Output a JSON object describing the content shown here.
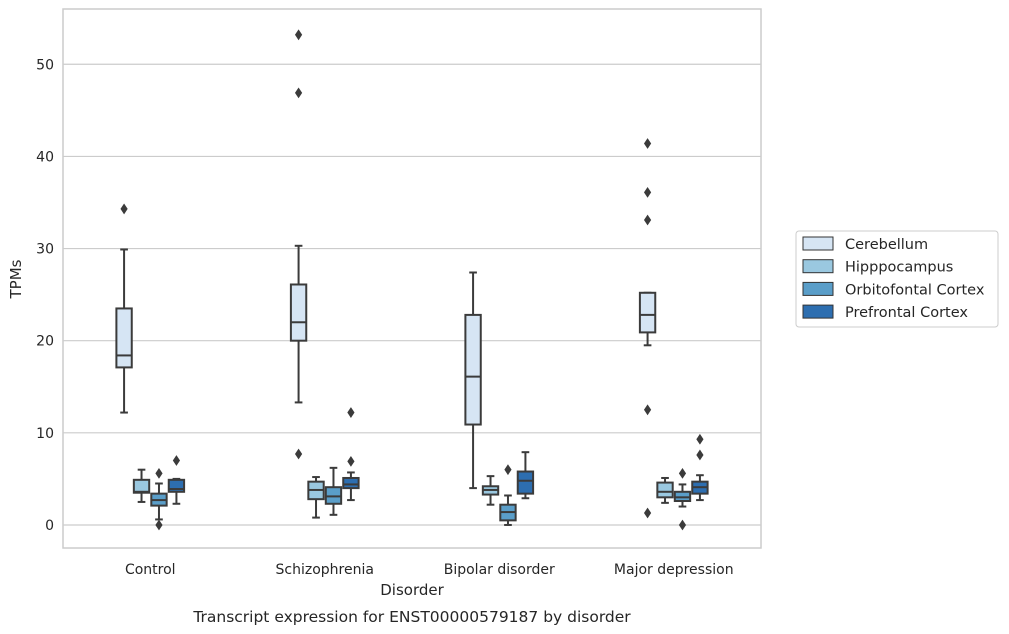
{
  "chart_data": {
    "type": "box",
    "caption": "Transcript expression for ENST00000579187 by disorder",
    "xlabel": "Disorder",
    "ylabel": "TPMs",
    "ylim": [
      -2.5,
      56
    ],
    "yticks": [
      0,
      10,
      20,
      30,
      40,
      50
    ],
    "grid": true,
    "legend_position": "right",
    "categories": [
      "Control",
      "Schizophrenia",
      "Bipolar disorder",
      "Major depression"
    ],
    "series": [
      {
        "name": "Cerebellum",
        "color": "#d6e5f4",
        "boxes": [
          {
            "whislo": 12.2,
            "q1": 17.1,
            "med": 18.4,
            "q3": 23.5,
            "whishi": 29.9,
            "fliers": [
              34.3
            ]
          },
          {
            "whislo": 13.3,
            "q1": 20.0,
            "med": 22.0,
            "q3": 26.1,
            "whishi": 30.3,
            "fliers": [
              53.2,
              46.9,
              7.7
            ]
          },
          {
            "whislo": 4.0,
            "q1": 10.9,
            "med": 16.1,
            "q3": 22.8,
            "whishi": 27.4,
            "fliers": []
          },
          {
            "whislo": 19.5,
            "q1": 20.9,
            "med": 22.8,
            "q3": 25.2,
            "whishi": 25.2,
            "fliers": [
              41.4,
              36.1,
              33.1,
              12.5,
              1.3
            ]
          }
        ]
      },
      {
        "name": "Hipppocampus",
        "color": "#9ac8e0",
        "boxes": [
          {
            "whislo": 2.5,
            "q1": 3.5,
            "med": 3.6,
            "q3": 4.9,
            "whishi": 6.0,
            "fliers": []
          },
          {
            "whislo": 0.8,
            "q1": 2.8,
            "med": 3.8,
            "q3": 4.7,
            "whishi": 5.2,
            "fliers": []
          },
          {
            "whislo": 2.2,
            "q1": 3.3,
            "med": 3.8,
            "q3": 4.2,
            "whishi": 5.3,
            "fliers": []
          },
          {
            "whislo": 2.4,
            "q1": 3.0,
            "med": 3.6,
            "q3": 4.6,
            "whishi": 5.1,
            "fliers": []
          }
        ]
      },
      {
        "name": "Orbitofontal Cortex",
        "color": "#5a9ec9",
        "boxes": [
          {
            "whislo": 0.6,
            "q1": 2.1,
            "med": 2.7,
            "q3": 3.4,
            "whishi": 4.5,
            "fliers": [
              5.6,
              0.0
            ]
          },
          {
            "whislo": 1.1,
            "q1": 2.3,
            "med": 3.1,
            "q3": 4.1,
            "whishi": 6.2,
            "fliers": []
          },
          {
            "whislo": 0.0,
            "q1": 0.5,
            "med": 1.4,
            "q3": 2.2,
            "whishi": 3.2,
            "fliers": [
              6.0
            ]
          },
          {
            "whislo": 2.0,
            "q1": 2.6,
            "med": 3.0,
            "q3": 3.6,
            "whishi": 4.4,
            "fliers": [
              5.6,
              0.0
            ]
          }
        ]
      },
      {
        "name": "Prefrontal Cortex",
        "color": "#2d6eb0",
        "boxes": [
          {
            "whislo": 2.3,
            "q1": 3.6,
            "med": 3.9,
            "q3": 4.9,
            "whishi": 5.0,
            "fliers": [
              7.0
            ]
          },
          {
            "whislo": 2.7,
            "q1": 4.0,
            "med": 4.4,
            "q3": 5.1,
            "whishi": 5.7,
            "fliers": [
              12.2,
              6.9
            ]
          },
          {
            "whislo": 2.9,
            "q1": 3.4,
            "med": 4.8,
            "q3": 5.8,
            "whishi": 7.9,
            "fliers": []
          },
          {
            "whislo": 2.7,
            "q1": 3.4,
            "med": 4.1,
            "q3": 4.7,
            "whishi": 5.4,
            "fliers": [
              9.3,
              7.6
            ]
          }
        ]
      }
    ]
  }
}
